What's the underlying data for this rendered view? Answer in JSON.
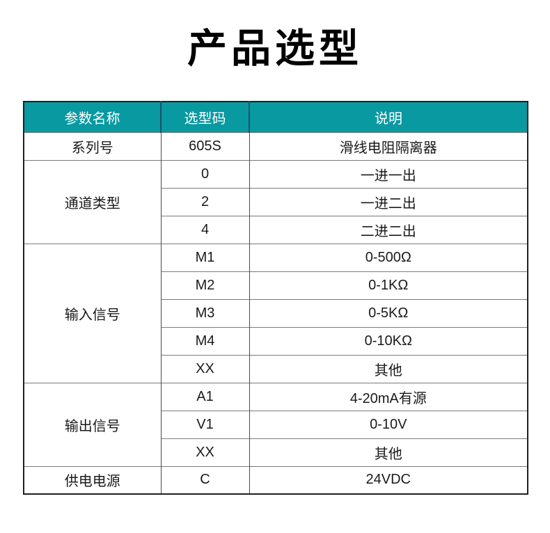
{
  "page": {
    "title": "产品选型"
  },
  "table": {
    "columns": [
      {
        "label": "参数名称"
      },
      {
        "label": "选型码"
      },
      {
        "label": "说明"
      }
    ],
    "groups": [
      {
        "param": "系列号",
        "rows": [
          {
            "code": "605S",
            "desc": "滑线电阻隔离器"
          }
        ]
      },
      {
        "param": "通道类型",
        "rows": [
          {
            "code": "0",
            "desc": "一进一出"
          },
          {
            "code": "2",
            "desc": "一进二出"
          },
          {
            "code": "4",
            "desc": "二进二出"
          }
        ]
      },
      {
        "param": "输入信号",
        "rows": [
          {
            "code": "M1",
            "desc": "0-500Ω"
          },
          {
            "code": "M2",
            "desc": "0-1KΩ"
          },
          {
            "code": "M3",
            "desc": "0-5KΩ"
          },
          {
            "code": "M4",
            "desc": "0-10KΩ"
          },
          {
            "code": "XX",
            "desc": "其他"
          }
        ]
      },
      {
        "param": "输出信号",
        "rows": [
          {
            "code": "A1",
            "desc": "4-20mA有源"
          },
          {
            "code": "V1",
            "desc": "0-10V"
          },
          {
            "code": "XX",
            "desc": "其他"
          }
        ]
      },
      {
        "param": "供电电源",
        "rows": [
          {
            "code": "C",
            "desc": "24VDC"
          }
        ]
      }
    ],
    "colors": {
      "header_bg": "#0899a1",
      "header_text": "#ffffff",
      "header_divider": "#14526b",
      "outer_border": "#1f1f1f",
      "row_line": "#7a7a7a",
      "column_line": "#4a4a4a",
      "body_text": "#1a1a1a"
    }
  }
}
